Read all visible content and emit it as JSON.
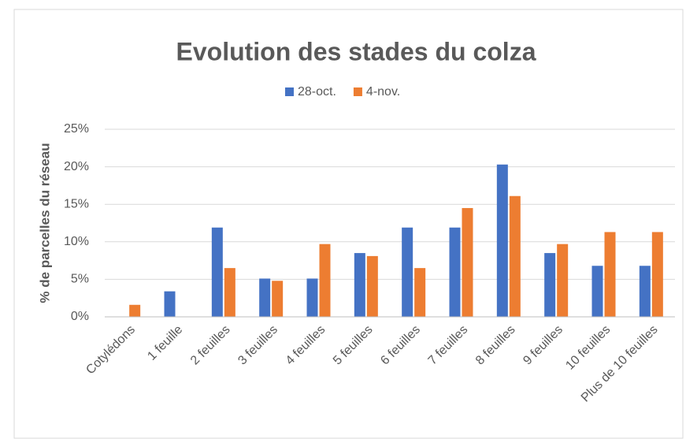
{
  "chart_data": {
    "type": "bar",
    "title": "Evolution des stades du colza",
    "y_label": "% de parcelles du réseau",
    "categories": [
      "Cotylédons",
      "1 feuille",
      "2 feuilles",
      "3 feuilles",
      "4 feuilles",
      "5 feuilles",
      "6 feuilles",
      "7 feuilles",
      "8 feuilles",
      "9 feuilles",
      "10 feuilles",
      "Plus de 10 feuilles"
    ],
    "series": [
      {
        "name": "28-oct.",
        "color": "#4472c4",
        "values": [
          0,
          3.4,
          11.9,
          5.1,
          5.1,
          8.5,
          11.9,
          11.9,
          20.3,
          8.5,
          6.8,
          6.8
        ]
      },
      {
        "name": "4-nov.",
        "color": "#ed7d31",
        "values": [
          1.6,
          0,
          6.5,
          4.8,
          9.7,
          8.1,
          6.5,
          14.5,
          16.1,
          9.7,
          11.3,
          11.3
        ]
      }
    ],
    "ylim": [
      0,
      25
    ],
    "yticks": [
      {
        "value": 0,
        "label": "0%"
      },
      {
        "value": 5,
        "label": "5%"
      },
      {
        "value": 10,
        "label": "10%"
      },
      {
        "value": 15,
        "label": "15%"
      },
      {
        "value": 20,
        "label": "20%"
      },
      {
        "value": 25,
        "label": "25%"
      }
    ],
    "grid": true,
    "legend": "top"
  }
}
